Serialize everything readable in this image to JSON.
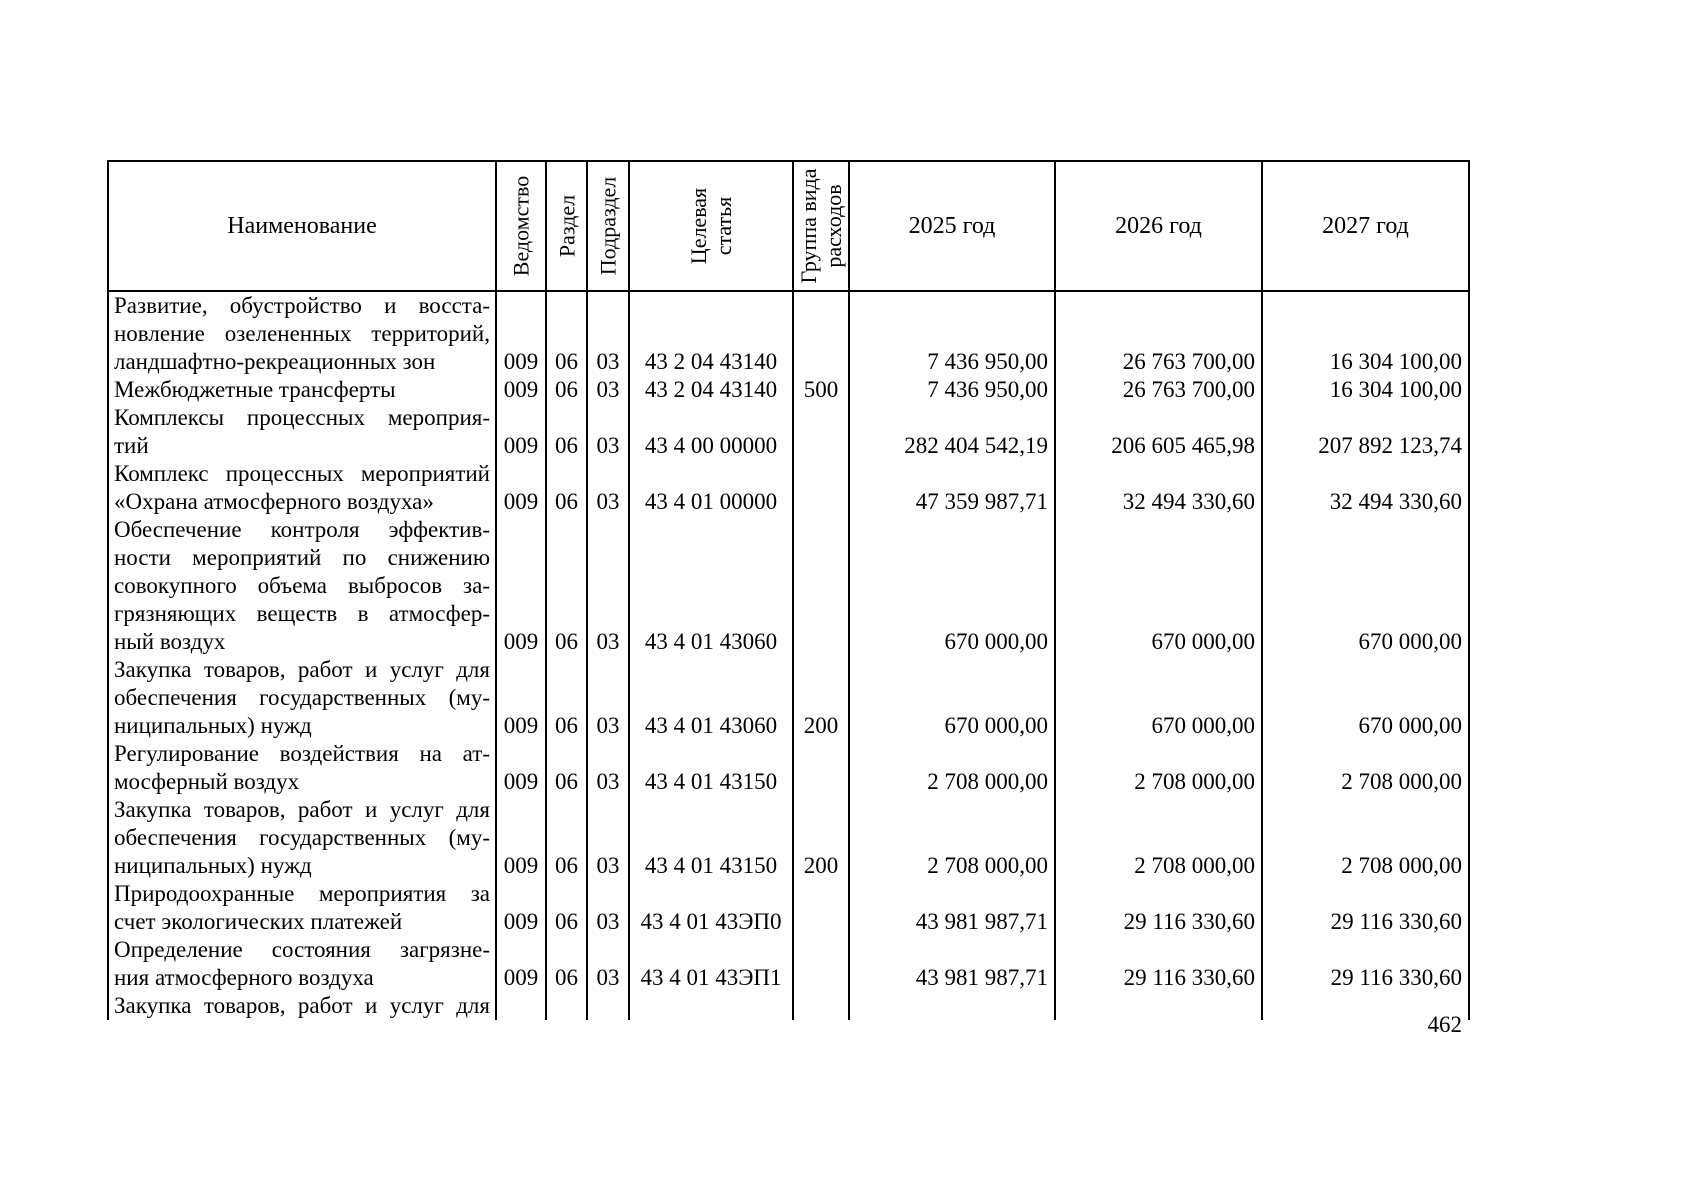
{
  "page": {
    "number": "462"
  },
  "table": {
    "header": {
      "name": "Наименование",
      "vedomstvo": "Ведомство",
      "razdel": "Раздел",
      "podrazdel": "Подраздел",
      "celevaya": "Целевая\nстатья",
      "gruppa": "Группа вида\nрасходов",
      "y2025": "2025 год",
      "y2026": "2026 год",
      "y2027": "2027 год"
    },
    "rows": [
      {
        "name": "Развитие, обустройство и восста-\nновление озелененных территорий,\nландшафтно-рекреационных зон",
        "ved": "009",
        "rz": "06",
        "pr": "03",
        "cs": "43 2 04 43140",
        "gr": "",
        "y2025": "7 436 950,00",
        "y2026": "26 763 700,00",
        "y2027": "16 304 100,00"
      },
      {
        "name": "Межбюджетные трансферты",
        "ved": "009",
        "rz": "06",
        "pr": "03",
        "cs": "43 2 04 43140",
        "gr": "500",
        "y2025": "7 436 950,00",
        "y2026": "26 763 700,00",
        "y2027": "16 304 100,00"
      },
      {
        "name": "Комплексы процессных мероприя-\nтий",
        "ved": "009",
        "rz": "06",
        "pr": "03",
        "cs": "43 4 00 00000",
        "gr": "",
        "y2025": "282 404 542,19",
        "y2026": "206 605 465,98",
        "y2027": "207 892 123,74"
      },
      {
        "name": "Комплекс процессных мероприятий\n«Охрана атмосферного воздуха»",
        "ved": "009",
        "rz": "06",
        "pr": "03",
        "cs": "43 4 01 00000",
        "gr": "",
        "y2025": "47 359 987,71",
        "y2026": "32 494 330,60",
        "y2027": "32 494 330,60"
      },
      {
        "name": "Обеспечение контроля эффектив-\nности мероприятий по снижению\nсовокупного объема выбросов за-\nгрязняющих веществ в атмосфер-\nный воздух",
        "ved": "009",
        "rz": "06",
        "pr": "03",
        "cs": "43 4 01 43060",
        "gr": "",
        "y2025": "670 000,00",
        "y2026": "670 000,00",
        "y2027": "670 000,00"
      },
      {
        "name": "Закупка товаров, работ и услуг для\nобеспечения государственных (му-\nниципальных) нужд",
        "ved": "009",
        "rz": "06",
        "pr": "03",
        "cs": "43 4 01 43060",
        "gr": "200",
        "y2025": "670 000,00",
        "y2026": "670 000,00",
        "y2027": "670 000,00"
      },
      {
        "name": "Регулирование воздействия на ат-\nмосферный воздух",
        "ved": "009",
        "rz": "06",
        "pr": "03",
        "cs": "43 4 01 43150",
        "gr": "",
        "y2025": "2 708 000,00",
        "y2026": "2 708 000,00",
        "y2027": "2 708 000,00"
      },
      {
        "name": "Закупка товаров, работ и услуг для\nобеспечения государственных (му-\nниципальных) нужд",
        "ved": "009",
        "rz": "06",
        "pr": "03",
        "cs": "43 4 01 43150",
        "gr": "200",
        "y2025": "2 708 000,00",
        "y2026": "2 708 000,00",
        "y2027": "2 708 000,00"
      },
      {
        "name": "Природоохранные мероприятия за\nсчет экологических платежей",
        "ved": "009",
        "rz": "06",
        "pr": "03",
        "cs": "43 4 01 43ЭП0",
        "gr": "",
        "y2025": "43 981 987,71",
        "y2026": "29 116 330,60",
        "y2027": "29 116 330,60"
      },
      {
        "name": "Определение состояния загрязне-\nния атмосферного воздуха",
        "ved": "009",
        "rz": "06",
        "pr": "03",
        "cs": "43 4 01 43ЭП1",
        "gr": "",
        "y2025": "43 981 987,71",
        "y2026": "29 116 330,60",
        "y2027": "29 116 330,60"
      },
      {
        "name": "Закупка товаров, работ и услуг для",
        "cont": true,
        "ved": "",
        "rz": "",
        "pr": "",
        "cs": "",
        "gr": "",
        "y2025": "",
        "y2026": "",
        "y2027": ""
      }
    ]
  }
}
